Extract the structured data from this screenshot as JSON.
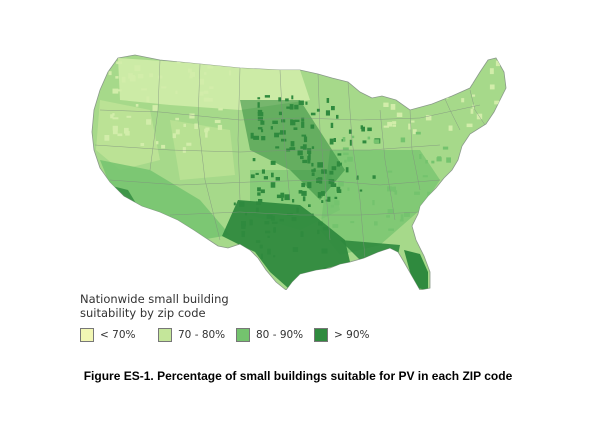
{
  "legend": {
    "title_line1": "Nationwide small building",
    "title_line2": "suitability by zip code",
    "items": [
      {
        "label": "< 70%",
        "color": "#f2f7b4"
      },
      {
        "label": "70 - 80%",
        "color": "#c4e69a"
      },
      {
        "label": "80 - 90%",
        "color": "#74c36e"
      },
      {
        "label": "> 90%",
        "color": "#2f8a3e"
      }
    ]
  },
  "caption": "Figure ES-1. Percentage of small buildings suitable for PV in each ZIP code",
  "colors": {
    "base": "#a6d98a",
    "light": "#d2edaa",
    "mid": "#74c36e",
    "dark": "#2f8a3e",
    "outline": "#8a9a8a"
  }
}
